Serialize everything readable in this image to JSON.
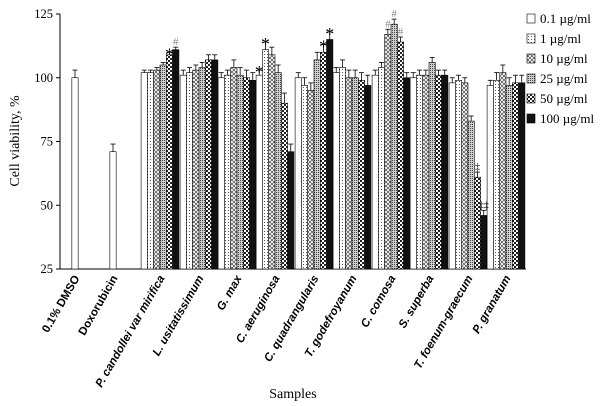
{
  "chart_data": {
    "type": "bar",
    "title": "",
    "xlabel": "Samples",
    "ylabel": "Cell viability, %",
    "ylim": [
      25,
      125
    ],
    "yticks": [
      25,
      50,
      75,
      100,
      125
    ],
    "grid": false,
    "legend_position": "top-right",
    "categories": [
      "0.1% DMSO",
      "Doxorubicin",
      "P. candollei var mirifica",
      "L. usitatissimum",
      "G. max",
      "C. aeruginosa",
      "C. quadrangularis",
      "T. godefroyanum",
      "C. comosa",
      "S. superba",
      "T. foenum-graecum",
      "P. granatum"
    ],
    "upright_categories": [
      "0.1% DMSO",
      "Doxorubicin"
    ],
    "control_values": [
      {
        "category": "0.1% DMSO",
        "value": 100,
        "error": 3
      },
      {
        "category": "Doxorubicin",
        "value": 71,
        "error": 3
      }
    ],
    "series": [
      {
        "name": "0.1 µg/ml",
        "fill": "white",
        "values": [
          null,
          null,
          102,
          101,
          100,
          101,
          100,
          102,
          101,
          100,
          98,
          97
        ],
        "errors": [
          null,
          null,
          1,
          2,
          2,
          2,
          2,
          2,
          2,
          2,
          2,
          2
        ]
      },
      {
        "name": "1 µg/ml",
        "fill": "dots-light",
        "values": [
          null,
          null,
          102,
          102,
          101,
          111,
          97,
          104,
          104,
          101,
          99,
          99
        ],
        "errors": [
          null,
          null,
          1,
          2,
          2,
          3,
          3,
          3,
          2,
          2,
          2,
          3
        ]
      },
      {
        "name": "10 µg/ml",
        "fill": "diag-cross",
        "values": [
          null,
          null,
          103,
          103,
          104,
          109,
          95,
          100,
          117,
          101,
          98,
          102
        ],
        "errors": [
          null,
          null,
          1,
          2,
          3,
          3,
          3,
          3,
          2,
          2,
          2,
          3
        ]
      },
      {
        "name": "25 µg/ml",
        "fill": "dots-dense",
        "values": [
          null,
          null,
          105,
          104,
          101,
          102,
          107,
          100,
          121,
          106,
          83,
          97
        ],
        "errors": [
          null,
          null,
          1,
          2,
          3,
          3,
          3,
          3,
          2,
          2,
          2,
          3
        ]
      },
      {
        "name": "50 µg/ml",
        "fill": "checker",
        "values": [
          null,
          null,
          109,
          107,
          100,
          90,
          110,
          99,
          114,
          101,
          61,
          98
        ],
        "errors": [
          null,
          null,
          1,
          2,
          3,
          4,
          3,
          3,
          2,
          2,
          2,
          3
        ]
      },
      {
        "name": "100 µg/ml",
        "fill": "black",
        "values": [
          null,
          null,
          111,
          107,
          99,
          71,
          115,
          97,
          100,
          101,
          46,
          98
        ],
        "errors": [
          null,
          null,
          1,
          2,
          3,
          3,
          3,
          4,
          2,
          2,
          2,
          3
        ]
      }
    ],
    "annotations": [
      {
        "category": "P. candollei var mirifica",
        "series": "50 µg/ml",
        "text": "*"
      },
      {
        "category": "P. candollei var mirifica",
        "series": "100 µg/ml",
        "text": "#"
      },
      {
        "category": "C. aeruginosa",
        "series": "0.1 µg/ml",
        "text": "*"
      },
      {
        "category": "C. aeruginosa",
        "series": "1 µg/ml",
        "text": "*"
      },
      {
        "category": "C. quadrangularis",
        "series": "50 µg/ml",
        "text": "*"
      },
      {
        "category": "C. quadrangularis",
        "series": "100 µg/ml",
        "text": "*"
      },
      {
        "category": "C. comosa",
        "series": "10 µg/ml",
        "text": "#"
      },
      {
        "category": "C. comosa",
        "series": "25 µg/ml",
        "text": "#"
      },
      {
        "category": "C. comosa",
        "series": "50 µg/ml",
        "text": "#"
      },
      {
        "category": "T. foenum-graecum",
        "series": "50 µg/ml",
        "text": "‡"
      },
      {
        "category": "T. foenum-graecum",
        "series": "100 µg/ml",
        "text": "‡‡"
      }
    ]
  }
}
